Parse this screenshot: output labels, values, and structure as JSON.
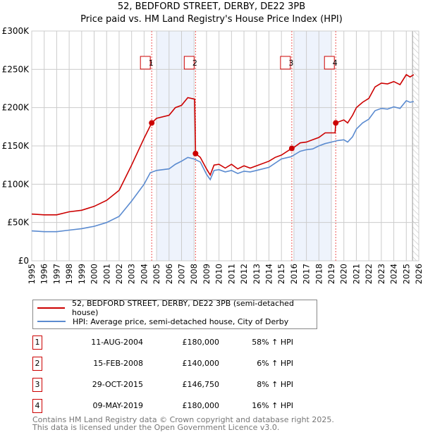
{
  "chart_data": {
    "type": "line",
    "title": "52, BEDFORD STREET, DERBY, DE22 3PB",
    "subtitle": "Price paid vs. HM Land Registry's House Price Index (HPI)",
    "xlim": [
      1995,
      2026
    ],
    "ylim": [
      0,
      300000
    ],
    "x_ticks": [
      "1995",
      "1996",
      "1997",
      "1998",
      "1999",
      "2000",
      "2001",
      "2002",
      "2003",
      "2004",
      "2005",
      "2006",
      "2007",
      "2008",
      "2009",
      "2010",
      "2011",
      "2012",
      "2013",
      "2014",
      "2015",
      "2016",
      "2017",
      "2018",
      "2019",
      "2020",
      "2021",
      "2022",
      "2023",
      "2024",
      "2025",
      "2026"
    ],
    "y_ticks": [
      {
        "v": 0,
        "label": "£0"
      },
      {
        "v": 50000,
        "label": "£50K"
      },
      {
        "v": 100000,
        "label": "£100K"
      },
      {
        "v": 150000,
        "label": "£150K"
      },
      {
        "v": 200000,
        "label": "£200K"
      },
      {
        "v": 250000,
        "label": "£250K"
      },
      {
        "v": 300000,
        "label": "£300K"
      }
    ],
    "grid": true,
    "shaded_ranges": [
      [
        2005,
        2008
      ],
      [
        2016,
        2019
      ]
    ],
    "forecast_hatch_from": 2025.5,
    "series": [
      {
        "name": "52, BEDFORD STREET, DERBY, DE22 3PB (semi-detached house)",
        "color": "#cc0000",
        "x": [
          1995,
          1996,
          1997,
          1998,
          1999,
          2000,
          2001,
          2002,
          2003,
          2004,
          2004.61,
          2005,
          2006,
          2006.5,
          2007,
          2007.5,
          2008.05,
          2008.12,
          2008.5,
          2009,
          2009.3,
          2009.6,
          2010,
          2010.5,
          2011,
          2011.5,
          2012,
          2012.5,
          2013,
          2014,
          2014.5,
          2015,
          2015.83,
          2016,
          2016.5,
          2017,
          2017.5,
          2018,
          2018.5,
          2019.3,
          2019.35,
          2020,
          2020.3,
          2020.7,
          2021,
          2021.5,
          2022,
          2022.5,
          2023,
          2023.5,
          2024,
          2024.5,
          2025,
          2025.3,
          2025.6
        ],
        "y": [
          61000,
          60000,
          60000,
          64000,
          66000,
          71000,
          79000,
          92000,
          125000,
          160000,
          180000,
          186000,
          190000,
          200000,
          203000,
          213000,
          211000,
          140000,
          135000,
          120000,
          112000,
          125000,
          126000,
          121000,
          126000,
          120000,
          124000,
          121000,
          124000,
          130000,
          135000,
          138000,
          146750,
          148000,
          154000,
          155000,
          158000,
          161000,
          167000,
          167000,
          180000,
          184000,
          180000,
          190000,
          200000,
          207000,
          212000,
          227000,
          232000,
          231000,
          234000,
          230000,
          243000,
          240000,
          243000
        ]
      },
      {
        "name": "HPI: Average price, semi-detached house, City of Derby",
        "color": "#5b8bd0",
        "x": [
          1995,
          1996,
          1997,
          1998,
          1999,
          2000,
          2001,
          2002,
          2003,
          2004,
          2004.5,
          2005,
          2006,
          2006.5,
          2007,
          2007.5,
          2008,
          2008.5,
          2009,
          2009.3,
          2009.6,
          2010,
          2010.5,
          2011,
          2011.5,
          2012,
          2012.5,
          2013,
          2014,
          2015,
          2015.8,
          2016,
          2016.5,
          2017,
          2017.5,
          2018,
          2018.5,
          2019,
          2019.5,
          2020,
          2020.3,
          2020.7,
          2021,
          2021.5,
          2022,
          2022.5,
          2023,
          2023.5,
          2024,
          2024.5,
          2025,
          2025.3,
          2025.6
        ],
        "y": [
          39000,
          38000,
          38000,
          40000,
          42000,
          45000,
          50000,
          58000,
          78000,
          100000,
          115000,
          118000,
          120000,
          126000,
          130000,
          135000,
          133000,
          129000,
          113000,
          106000,
          118000,
          119000,
          116000,
          118000,
          114000,
          117000,
          116000,
          118000,
          122000,
          133000,
          136000,
          138000,
          143000,
          145000,
          146000,
          150000,
          153000,
          155000,
          157000,
          158000,
          155000,
          162000,
          172000,
          180000,
          185000,
          196000,
          199000,
          198000,
          201000,
          199000,
          209000,
          207000,
          208000
        ]
      }
    ],
    "sales": [
      {
        "n": "1",
        "x": 2004.61,
        "date": "11-AUG-2004",
        "value": 180000,
        "price": "£180,000",
        "hpi": "58% ↑ HPI"
      },
      {
        "n": "2",
        "x": 2008.12,
        "date": "15-FEB-2008",
        "value": 140000,
        "price": "£140,000",
        "hpi": "6% ↑ HPI"
      },
      {
        "n": "3",
        "x": 2015.83,
        "date": "29-OCT-2015",
        "value": 146750,
        "price": "£146,750",
        "hpi": "8% ↑ HPI"
      },
      {
        "n": "4",
        "x": 2019.35,
        "date": "09-MAY-2019",
        "value": 180000,
        "price": "£180,000",
        "hpi": "16% ↑ HPI"
      }
    ]
  },
  "footer": {
    "line1": "Contains HM Land Registry data © Crown copyright and database right 2025.",
    "line2": "This data is licensed under the Open Government Licence v3.0."
  }
}
